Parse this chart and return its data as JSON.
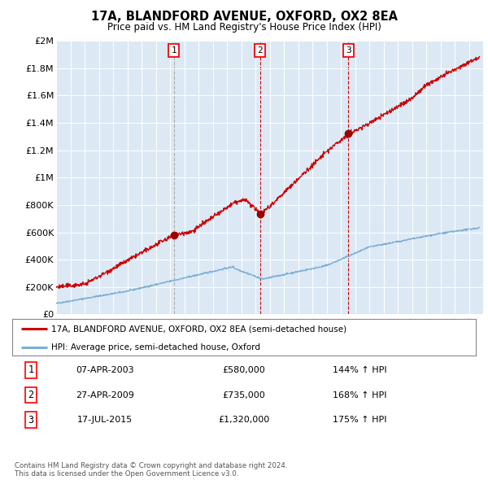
{
  "title": "17A, BLANDFORD AVENUE, OXFORD, OX2 8EA",
  "subtitle": "Price paid vs. HM Land Registry's House Price Index (HPI)",
  "background_color": "#dce9f5",
  "plot_bg_color": "#dce9f5",
  "ylim": [
    0,
    2000000
  ],
  "yticks": [
    0,
    200000,
    400000,
    600000,
    800000,
    1000000,
    1200000,
    1400000,
    1600000,
    1800000,
    2000000
  ],
  "ytick_labels": [
    "£0",
    "£200K",
    "£400K",
    "£600K",
    "£800K",
    "£1M",
    "£1.2M",
    "£1.4M",
    "£1.6M",
    "£1.8M",
    "£2M"
  ],
  "hpi_color": "#7bafd4",
  "price_color": "#cc0000",
  "marker_color": "#990000",
  "vline_color_1": "#aaaaaa",
  "vline_color_23": "#cc0000",
  "sale_year_floats": [
    2003.27,
    2009.32,
    2015.54
  ],
  "sale_prices": [
    580000,
    735000,
    1320000
  ],
  "sale_labels": [
    "1",
    "2",
    "3"
  ],
  "legend_label_price": "17A, BLANDFORD AVENUE, OXFORD, OX2 8EA (semi-detached house)",
  "legend_label_hpi": "HPI: Average price, semi-detached house, Oxford",
  "table_rows": [
    [
      "1",
      "07-APR-2003",
      "£580,000",
      "144% ↑ HPI"
    ],
    [
      "2",
      "27-APR-2009",
      "£735,000",
      "168% ↑ HPI"
    ],
    [
      "3",
      "17-JUL-2015",
      "£1,320,000",
      "175% ↑ HPI"
    ]
  ],
  "footnote": "Contains HM Land Registry data © Crown copyright and database right 2024.\nThis data is licensed under the Open Government Licence v3.0."
}
